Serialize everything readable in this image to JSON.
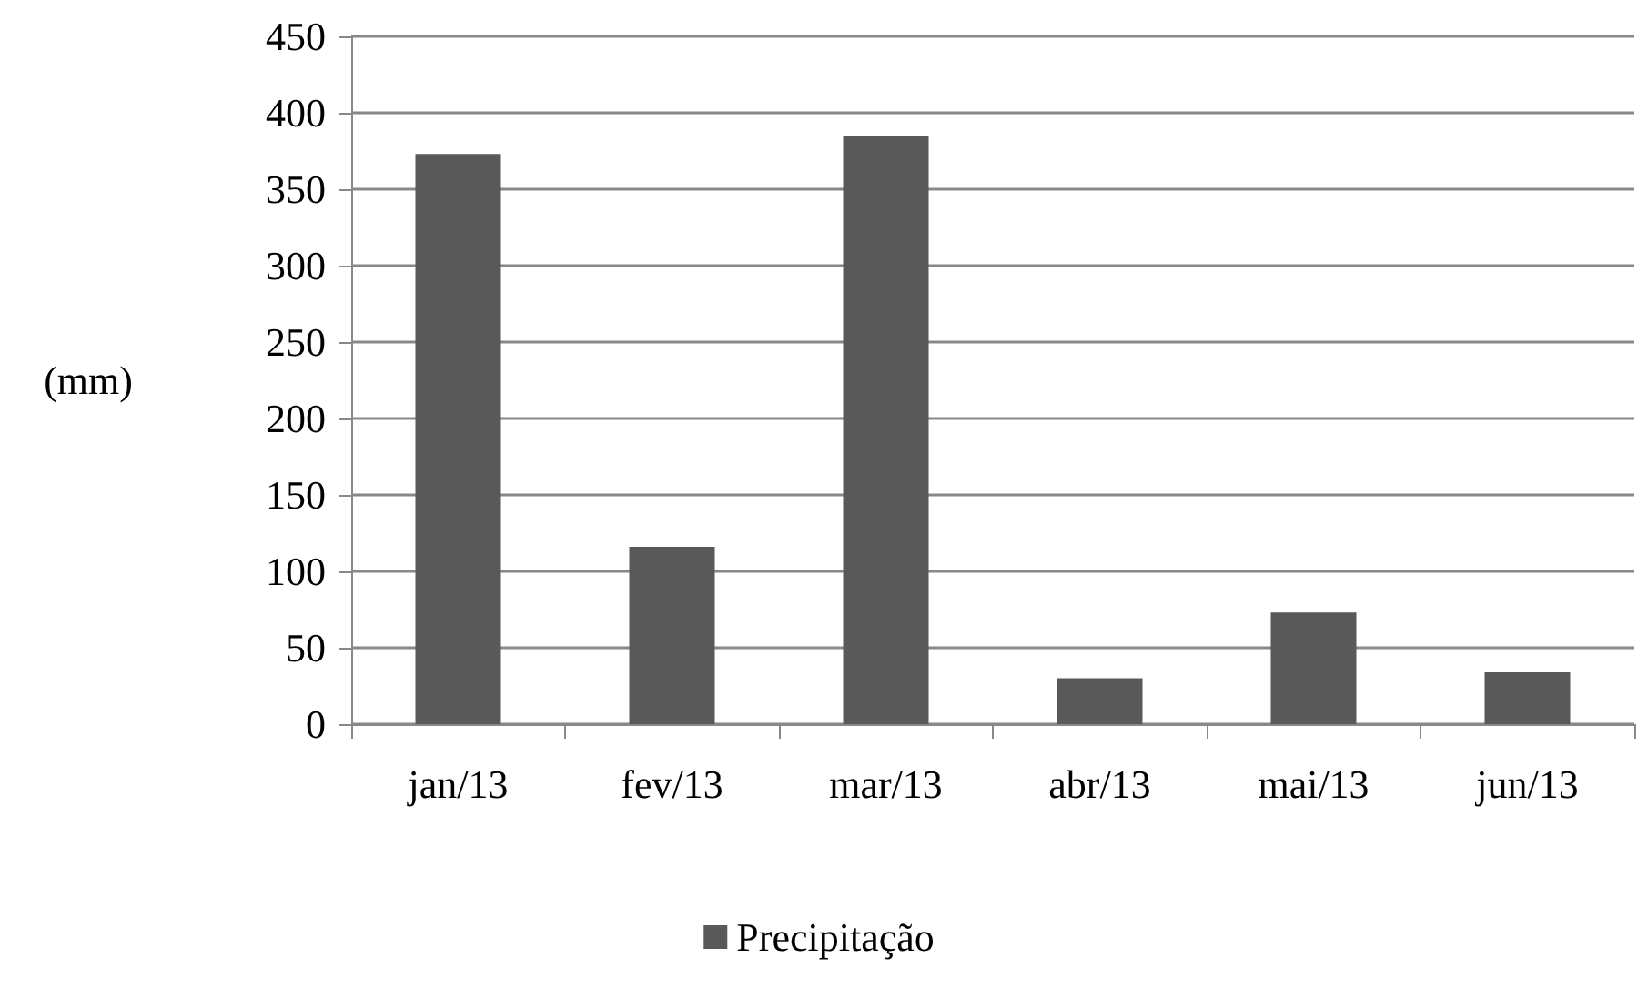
{
  "chart_data": {
    "type": "bar",
    "ylabel": "(mm)",
    "categories": [
      "jan/13",
      "fev/13",
      "mar/13",
      "abr/13",
      "mai/13",
      "jun/13"
    ],
    "series": [
      {
        "name": "Precipitação",
        "color": "#595959",
        "values": [
          373,
          116,
          385,
          30,
          73,
          34
        ]
      }
    ],
    "ylim": [
      0,
      450
    ],
    "yticks": [
      0,
      50,
      100,
      150,
      200,
      250,
      300,
      350,
      400,
      450
    ],
    "grid": "y",
    "legend": "bottom"
  }
}
